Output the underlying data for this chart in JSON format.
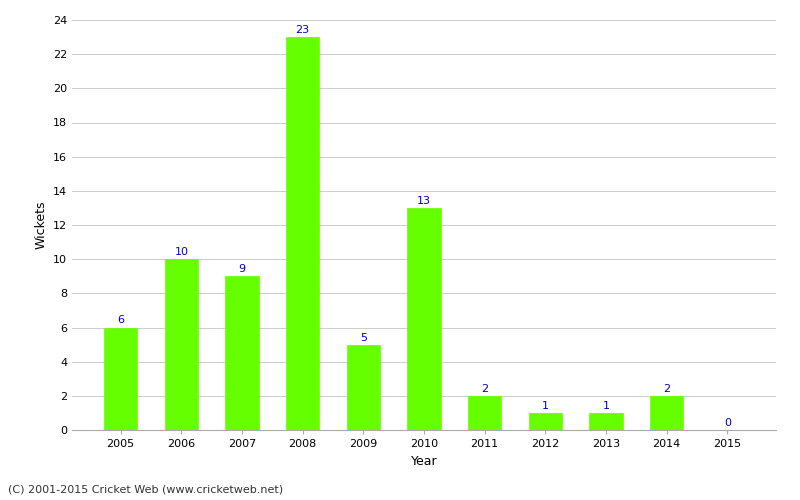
{
  "years": [
    2005,
    2006,
    2007,
    2008,
    2009,
    2010,
    2011,
    2012,
    2013,
    2014,
    2015
  ],
  "wickets": [
    6,
    10,
    9,
    23,
    5,
    13,
    2,
    1,
    1,
    2,
    0
  ],
  "bar_color": "#66ff00",
  "bar_edge_color": "#66ff00",
  "label_color": "#0000cc",
  "xlabel": "Year",
  "ylabel": "Wickets",
  "ylim": [
    0,
    24
  ],
  "yticks": [
    0,
    2,
    4,
    6,
    8,
    10,
    12,
    14,
    16,
    18,
    20,
    22,
    24
  ],
  "background_color": "#ffffff",
  "grid_color": "#cccccc",
  "footer": "(C) 2001-2015 Cricket Web (www.cricketweb.net)",
  "label_fontsize": 8,
  "axis_label_fontsize": 9,
  "tick_fontsize": 8,
  "footer_fontsize": 8,
  "bar_width": 0.55
}
